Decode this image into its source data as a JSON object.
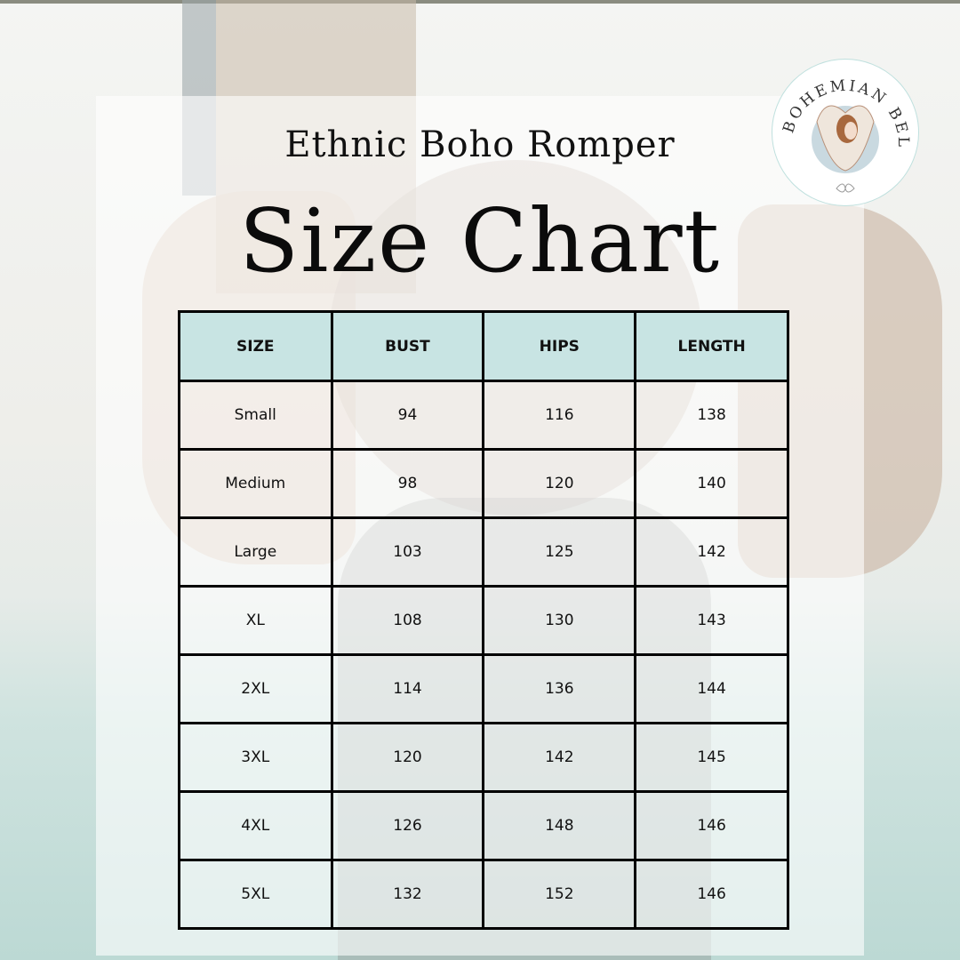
{
  "header": {
    "subtitle": "Ethnic Boho Romper",
    "title": "Size Chart"
  },
  "logo": {
    "text": "BOHEMIAN BELLE",
    "accent": "#bfe0de"
  },
  "table": {
    "header_color": "#c8e4e3",
    "columns": [
      "SIZE",
      "BUST",
      "HIPS",
      "LENGTH"
    ],
    "rows": [
      [
        "Small",
        "94",
        "116",
        "138"
      ],
      [
        "Medium",
        "98",
        "120",
        "140"
      ],
      [
        "Large",
        "103",
        "125",
        "142"
      ],
      [
        "XL",
        "108",
        "130",
        "143"
      ],
      [
        "2XL",
        "114",
        "136",
        "144"
      ],
      [
        "3XL",
        "120",
        "142",
        "145"
      ],
      [
        "4XL",
        "126",
        "148",
        "146"
      ],
      [
        "5XL",
        "132",
        "152",
        "146"
      ]
    ]
  }
}
